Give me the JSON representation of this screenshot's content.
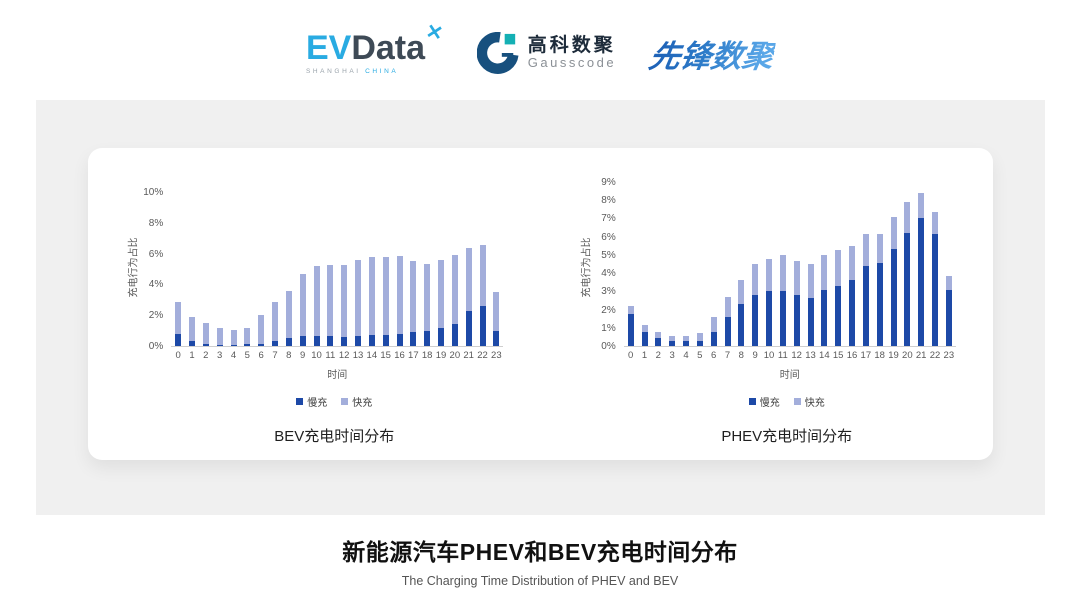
{
  "logos": {
    "evdata": {
      "ev": "EV",
      "data": "Data",
      "mark": "✕",
      "sub_left": "SHANGHAI",
      "sub_right": "CHINA"
    },
    "gausscode": {
      "cn": "高科数聚",
      "en": "Gausscode"
    },
    "pioneer": {
      "text": "先锋数聚"
    }
  },
  "colors": {
    "slow_charge": "#1D49A7",
    "fast_charge": "#A3AEDB",
    "band_background": "#F0F0F0",
    "axis_text": "#595959"
  },
  "chart_data": [
    {
      "type": "bar",
      "stacked": true,
      "title": "BEV充电时间分布",
      "xlabel": "时间",
      "ylabel": "充电行为占比",
      "ylim": [
        0,
        10
      ],
      "ytick_step": 2,
      "ytick_suffix": "%",
      "grid": false,
      "legend_position": "bottom",
      "categories": [
        "0",
        "1",
        "2",
        "3",
        "4",
        "5",
        "6",
        "7",
        "8",
        "9",
        "10",
        "11",
        "12",
        "13",
        "14",
        "15",
        "16",
        "17",
        "18",
        "19",
        "20",
        "21",
        "22",
        "23"
      ],
      "series": [
        {
          "name": "慢充",
          "color": "#1D49A7",
          "values": [
            0.75,
            0.3,
            0.15,
            0.08,
            0.05,
            0.1,
            0.15,
            0.3,
            0.5,
            0.65,
            0.65,
            0.65,
            0.6,
            0.65,
            0.7,
            0.7,
            0.75,
            0.9,
            1.0,
            1.2,
            1.45,
            2.3,
            2.6,
            0.95
          ]
        },
        {
          "name": "快充",
          "color": "#A3AEDB",
          "values": [
            2.1,
            1.6,
            1.35,
            1.12,
            1.0,
            1.1,
            1.85,
            2.55,
            3.1,
            4.0,
            4.55,
            4.6,
            4.65,
            4.95,
            5.1,
            5.1,
            5.1,
            4.6,
            4.3,
            4.4,
            4.45,
            4.05,
            3.95,
            2.55
          ]
        }
      ]
    },
    {
      "type": "bar",
      "stacked": true,
      "title": "PHEV充电时间分布",
      "xlabel": "时间",
      "ylabel": "充电行为占比",
      "ylim": [
        0,
        9
      ],
      "ytick_step": 1,
      "ytick_suffix": "%",
      "grid": false,
      "legend_position": "bottom",
      "categories": [
        "0",
        "1",
        "2",
        "3",
        "4",
        "5",
        "6",
        "7",
        "8",
        "9",
        "10",
        "11",
        "12",
        "13",
        "14",
        "15",
        "16",
        "17",
        "18",
        "19",
        "20",
        "21",
        "22",
        "23"
      ],
      "series": [
        {
          "name": "慢充",
          "color": "#1D49A7",
          "values": [
            1.75,
            0.75,
            0.45,
            0.3,
            0.25,
            0.3,
            0.75,
            1.6,
            2.3,
            2.8,
            3.0,
            3.0,
            2.8,
            2.65,
            3.1,
            3.3,
            3.6,
            4.4,
            4.55,
            5.35,
            6.2,
            7.0,
            6.15,
            3.05
          ]
        },
        {
          "name": "快充",
          "color": "#A3AEDB",
          "values": [
            0.45,
            0.4,
            0.3,
            0.25,
            0.3,
            0.4,
            0.85,
            1.1,
            1.35,
            1.7,
            1.8,
            2.0,
            1.85,
            1.85,
            1.9,
            1.95,
            1.9,
            1.75,
            1.6,
            1.75,
            1.7,
            1.4,
            1.2,
            0.8
          ]
        }
      ]
    }
  ],
  "footer": {
    "title": "新能源汽车PHEV和BEV充电时间分布",
    "subtitle": "The Charging Time Distribution of PHEV and BEV"
  }
}
